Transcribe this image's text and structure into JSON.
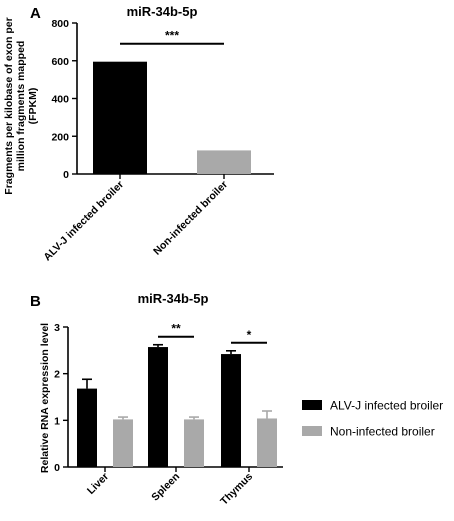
{
  "chart_data": [
    {
      "panel": "A",
      "type": "bar",
      "title": "miR-34b-5p",
      "ylabel_lines": [
        "Fragments per kilobase of exon per",
        "million fragments mapped",
        "(FPKM)"
      ],
      "categories": [
        "ALV-J infected broiler",
        "Non-infected broiler"
      ],
      "values": [
        595,
        125
      ],
      "colors": [
        "#000000",
        "#a9a9a9"
      ],
      "ylim": [
        0,
        800
      ],
      "yticks": [
        0,
        200,
        400,
        600,
        800
      ],
      "significance": [
        {
          "between": [
            0,
            1
          ],
          "label": "***"
        }
      ]
    },
    {
      "panel": "B",
      "type": "bar",
      "title": "miR-34b-5p",
      "ylabel": "Relative RNA expression level",
      "categories": [
        "Liver",
        "Spleen",
        "Thymus"
      ],
      "series": [
        {
          "name": "ALV-J infected broiler",
          "color": "#000000",
          "values": [
            1.68,
            2.57,
            2.42
          ],
          "errors": [
            0.2,
            0.05,
            0.07
          ]
        },
        {
          "name": "Non-infected broiler",
          "color": "#a9a9a9",
          "values": [
            1.02,
            1.02,
            1.04
          ],
          "errors": [
            0.05,
            0.05,
            0.16
          ]
        }
      ],
      "ylim": [
        0,
        3
      ],
      "yticks": [
        0,
        1,
        2,
        3
      ],
      "significance": [
        {
          "category": 1,
          "label": "**"
        },
        {
          "category": 2,
          "label": "*"
        }
      ],
      "legend_position": "right"
    }
  ]
}
